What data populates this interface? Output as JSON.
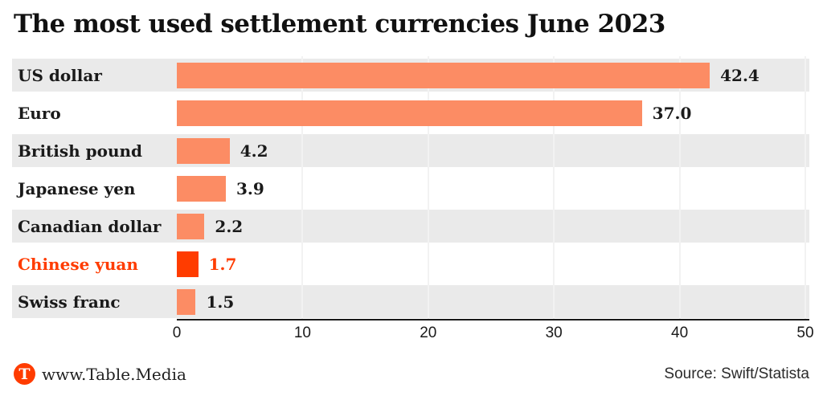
{
  "header": {
    "title": "The most used settlement currencies June 2023"
  },
  "chart_data": {
    "type": "bar",
    "orientation": "horizontal",
    "title": "The most used settlement currencies June 2023",
    "categories": [
      "US dollar",
      "Euro",
      "British pound",
      "Japanese yen",
      "Canadian dollar",
      "Chinese yuan",
      "Swiss franc"
    ],
    "values": [
      42.4,
      37.0,
      4.2,
      3.9,
      2.2,
      1.7,
      1.5
    ],
    "value_labels": [
      "42.4",
      "37.0",
      "4.2",
      "3.9",
      "2.2",
      "1.7",
      "1.5"
    ],
    "highlight_index": 5,
    "highlighted_category": "Chinese yuan",
    "x_ticks": [
      0,
      10,
      20,
      30,
      40,
      50
    ],
    "xlim": [
      0,
      50
    ],
    "grid": true,
    "legend": false,
    "colors": {
      "bar": "#FC8C64",
      "bar_highlight": "#FF3C00",
      "row_stripe": "#EAEAEA",
      "label": "#1A1A1A",
      "label_highlight": "#FF3C00",
      "axis_line": "#1A1A1A",
      "gridline": "#F2F2F2"
    }
  },
  "footer": {
    "logo_letter": "T",
    "website": "www.Table.Media",
    "source": "Source: Swift/Statista"
  }
}
